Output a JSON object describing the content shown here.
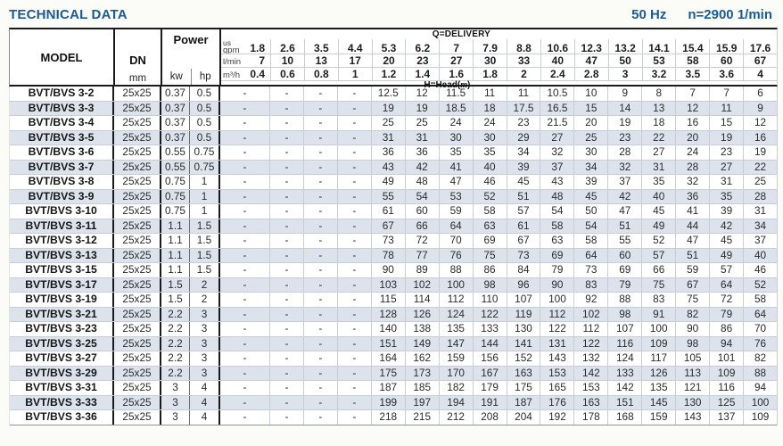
{
  "header": {
    "title": "TECHNICAL DATA",
    "frequency": "50 Hz",
    "speed": "n=2900 1/min"
  },
  "colors": {
    "accent": "#1a5a96",
    "row-alt": "#dce3ed"
  },
  "table": {
    "model_header": "MODEL",
    "dn_header": "DN",
    "dn_unit": "mm",
    "power_header": "Power",
    "power_unit_kw": "kw",
    "power_unit_hp": "hp",
    "delivery_label": "Q=DELIVERY",
    "head_label_prefix": "H=Head(",
    "head_label_unit": "m",
    "head_label_suffix": ")",
    "unit_rows": [
      {
        "sup": "us",
        "label": "gpm",
        "values": [
          "1.8",
          "2.6",
          "3.5",
          "4.4",
          "5.3",
          "6.2",
          "7",
          "7.9",
          "8.8",
          "10.6",
          "12.3",
          "13.2",
          "14.1",
          "15.4",
          "15.9",
          "17.6"
        ]
      },
      {
        "sup": "",
        "label": "l/min",
        "values": [
          "7",
          "10",
          "13",
          "17",
          "20",
          "23",
          "27",
          "30",
          "33",
          "40",
          "47",
          "50",
          "53",
          "58",
          "60",
          "67"
        ]
      },
      {
        "sup": "",
        "label": "m³/h",
        "values": [
          "0.4",
          "0.6",
          "0.8",
          "1",
          "1.2",
          "1.4",
          "1.6",
          "1.8",
          "2",
          "2.4",
          "2.8",
          "3",
          "3.2",
          "3.5",
          "3.6",
          "4"
        ]
      }
    ],
    "rows": [
      {
        "model": "BVT/BVS 3-2",
        "dn": "25x25",
        "kw": "0.37",
        "hp": "0.5",
        "heads": [
          "-",
          "-",
          "-",
          "-",
          "12.5",
          "12",
          "11.5",
          "11",
          "11",
          "10.5",
          "10",
          "9",
          "8",
          "7",
          "7",
          "6"
        ]
      },
      {
        "model": "BVT/BVS 3-3",
        "dn": "25x25",
        "kw": "0.37",
        "hp": "0.5",
        "heads": [
          "-",
          "-",
          "-",
          "-",
          "19",
          "19",
          "18.5",
          "18",
          "17.5",
          "16.5",
          "15",
          "14",
          "13",
          "12",
          "11",
          "9"
        ]
      },
      {
        "model": "BVT/BVS 3-4",
        "dn": "25x25",
        "kw": "0.37",
        "hp": "0.5",
        "heads": [
          "-",
          "-",
          "-",
          "-",
          "25",
          "25",
          "24",
          "24",
          "23",
          "21.5",
          "20",
          "19",
          "18",
          "16",
          "15",
          "12"
        ]
      },
      {
        "model": "BVT/BVS 3-5",
        "dn": "25x25",
        "kw": "0.37",
        "hp": "0.5",
        "heads": [
          "-",
          "-",
          "-",
          "-",
          "31",
          "31",
          "30",
          "30",
          "29",
          "27",
          "25",
          "23",
          "22",
          "20",
          "19",
          "16"
        ]
      },
      {
        "model": "BVT/BVS 3-6",
        "dn": "25x25",
        "kw": "0.55",
        "hp": "0.75",
        "heads": [
          "-",
          "-",
          "-",
          "-",
          "36",
          "36",
          "35",
          "35",
          "34",
          "32",
          "30",
          "28",
          "27",
          "24",
          "23",
          "19"
        ]
      },
      {
        "model": "BVT/BVS 3-7",
        "dn": "25x25",
        "kw": "0.55",
        "hp": "0.75",
        "heads": [
          "-",
          "-",
          "-",
          "-",
          "43",
          "42",
          "41",
          "40",
          "39",
          "37",
          "34",
          "32",
          "31",
          "28",
          "27",
          "22"
        ]
      },
      {
        "model": "BVT/BVS 3-8",
        "dn": "25x25",
        "kw": "0.75",
        "hp": "1",
        "heads": [
          "-",
          "-",
          "-",
          "-",
          "49",
          "48",
          "47",
          "46",
          "45",
          "43",
          "39",
          "37",
          "35",
          "32",
          "31",
          "25"
        ]
      },
      {
        "model": "BVT/BVS 3-9",
        "dn": "25x25",
        "kw": "0.75",
        "hp": "1",
        "heads": [
          "-",
          "-",
          "-",
          "-",
          "55",
          "54",
          "53",
          "52",
          "51",
          "48",
          "45",
          "42",
          "40",
          "36",
          "35",
          "28"
        ]
      },
      {
        "model": "BVT/BVS 3-10",
        "dn": "25x25",
        "kw": "0.75",
        "hp": "1",
        "heads": [
          "-",
          "-",
          "-",
          "-",
          "61",
          "60",
          "59",
          "58",
          "57",
          "54",
          "50",
          "47",
          "45",
          "41",
          "39",
          "31"
        ]
      },
      {
        "model": "BVT/BVS 3-11",
        "dn": "25x25",
        "kw": "1.1",
        "hp": "1.5",
        "heads": [
          "-",
          "-",
          "-",
          "-",
          "67",
          "66",
          "64",
          "63",
          "61",
          "58",
          "54",
          "51",
          "49",
          "44",
          "42",
          "34"
        ]
      },
      {
        "model": "BVT/BVS 3-12",
        "dn": "25x25",
        "kw": "1.1",
        "hp": "1.5",
        "heads": [
          "-",
          "-",
          "-",
          "-",
          "73",
          "72",
          "70",
          "69",
          "67",
          "63",
          "58",
          "55",
          "52",
          "47",
          "45",
          "37"
        ]
      },
      {
        "model": "BVT/BVS 3-13",
        "dn": "25x25",
        "kw": "1.1",
        "hp": "1.5",
        "heads": [
          "-",
          "-",
          "-",
          "-",
          "78",
          "77",
          "76",
          "75",
          "73",
          "69",
          "64",
          "60",
          "57",
          "51",
          "49",
          "40"
        ]
      },
      {
        "model": "BVT/BVS 3-15",
        "dn": "25x25",
        "kw": "1.1",
        "hp": "1.5",
        "heads": [
          "-",
          "-",
          "-",
          "-",
          "90",
          "89",
          "88",
          "86",
          "84",
          "79",
          "73",
          "69",
          "66",
          "59",
          "57",
          "46"
        ]
      },
      {
        "model": "BVT/BVS 3-17",
        "dn": "25x25",
        "kw": "1.5",
        "hp": "2",
        "heads": [
          "-",
          "-",
          "-",
          "-",
          "103",
          "102",
          "100",
          "98",
          "96",
          "90",
          "83",
          "79",
          "75",
          "67",
          "64",
          "52"
        ]
      },
      {
        "model": "BVT/BVS 3-19",
        "dn": "25x25",
        "kw": "1.5",
        "hp": "2",
        "heads": [
          "-",
          "-",
          "-",
          "-",
          "115",
          "114",
          "112",
          "110",
          "107",
          "100",
          "92",
          "88",
          "83",
          "75",
          "72",
          "58"
        ]
      },
      {
        "model": "BVT/BVS 3-21",
        "dn": "25x25",
        "kw": "2.2",
        "hp": "3",
        "heads": [
          "-",
          "-",
          "-",
          "-",
          "128",
          "126",
          "124",
          "122",
          "119",
          "112",
          "102",
          "98",
          "91",
          "82",
          "79",
          "64"
        ]
      },
      {
        "model": "BVT/BVS 3-23",
        "dn": "25x25",
        "kw": "2.2",
        "hp": "3",
        "heads": [
          "-",
          "-",
          "-",
          "-",
          "140",
          "138",
          "135",
          "133",
          "130",
          "122",
          "112",
          "107",
          "100",
          "90",
          "86",
          "70"
        ]
      },
      {
        "model": "BVT/BVS 3-25",
        "dn": "25x25",
        "kw": "2.2",
        "hp": "3",
        "heads": [
          "-",
          "-",
          "-",
          "-",
          "151",
          "149",
          "147",
          "144",
          "141",
          "131",
          "122",
          "116",
          "109",
          "98",
          "94",
          "76"
        ]
      },
      {
        "model": "BVT/BVS 3-27",
        "dn": "25x25",
        "kw": "2.2",
        "hp": "3",
        "heads": [
          "-",
          "-",
          "-",
          "-",
          "164",
          "162",
          "159",
          "156",
          "152",
          "143",
          "132",
          "124",
          "117",
          "105",
          "101",
          "82"
        ]
      },
      {
        "model": "BVT/BVS 3-29",
        "dn": "25x25",
        "kw": "2.2",
        "hp": "3",
        "heads": [
          "-",
          "-",
          "-",
          "-",
          "175",
          "173",
          "170",
          "167",
          "163",
          "153",
          "142",
          "133",
          "126",
          "113",
          "109",
          "88"
        ]
      },
      {
        "model": "BVT/BVS 3-31",
        "dn": "25x25",
        "kw": "3",
        "hp": "4",
        "heads": [
          "-",
          "-",
          "-",
          "-",
          "187",
          "185",
          "182",
          "179",
          "175",
          "165",
          "153",
          "142",
          "135",
          "121",
          "116",
          "94"
        ]
      },
      {
        "model": "BVT/BVS 3-33",
        "dn": "25x25",
        "kw": "3",
        "hp": "4",
        "heads": [
          "-",
          "-",
          "-",
          "-",
          "199",
          "197",
          "194",
          "191",
          "187",
          "176",
          "163",
          "151",
          "145",
          "130",
          "125",
          "100"
        ]
      },
      {
        "model": "BVT/BVS 3-36",
        "dn": "25x25",
        "kw": "3",
        "hp": "4",
        "heads": [
          "-",
          "-",
          "-",
          "-",
          "218",
          "215",
          "212",
          "208",
          "204",
          "192",
          "178",
          "168",
          "159",
          "143",
          "137",
          "109"
        ]
      }
    ]
  }
}
